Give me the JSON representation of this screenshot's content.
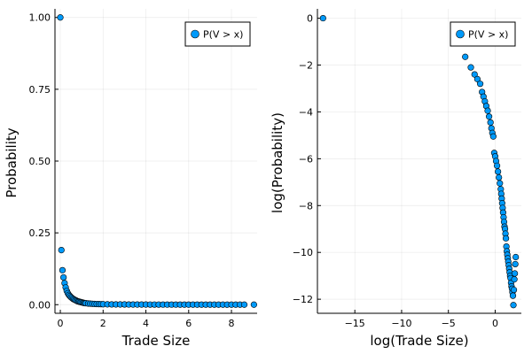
{
  "chart_data": [
    {
      "type": "scatter",
      "xlabel": "Trade Size",
      "ylabel": "Probability",
      "xlim": [
        -0.25,
        9.2
      ],
      "ylim": [
        -0.03,
        1.03
      ],
      "xticks": [
        0,
        2,
        4,
        6,
        8
      ],
      "xtick_labels": [
        "0",
        "2",
        "4",
        "6",
        "8"
      ],
      "yticks": [
        0.0,
        0.25,
        0.5,
        0.75,
        1.0
      ],
      "ytick_labels": [
        "0.00",
        "0.25",
        "0.50",
        "0.75",
        "1.00"
      ],
      "grid": true,
      "legend_position": "top-right",
      "series": [
        {
          "name": "P(V > x)",
          "color": "#009AFA",
          "x": [
            0.0,
            0.05,
            0.1,
            0.15,
            0.2,
            0.25,
            0.3,
            0.35,
            0.4,
            0.45,
            0.5,
            0.55,
            0.6,
            0.65,
            0.7,
            0.75,
            0.8,
            0.85,
            0.9,
            0.95,
            1.0,
            1.05,
            1.1,
            1.15,
            1.2,
            1.3,
            1.4,
            1.5,
            1.6,
            1.7,
            1.8,
            1.9,
            2.0,
            2.2,
            2.4,
            2.6,
            2.8,
            3.0,
            3.2,
            3.4,
            3.6,
            3.8,
            4.0,
            4.2,
            4.4,
            4.6,
            4.8,
            5.0,
            5.2,
            5.4,
            5.6,
            5.8,
            6.0,
            6.2,
            6.4,
            6.6,
            6.8,
            7.0,
            7.2,
            7.4,
            7.6,
            7.8,
            8.0,
            8.2,
            8.4,
            8.6,
            9.05
          ],
          "y": [
            1.0,
            0.19,
            0.12,
            0.095,
            0.075,
            0.06,
            0.048,
            0.04,
            0.034,
            0.03,
            0.026,
            0.023,
            0.02,
            0.018,
            0.016,
            0.014,
            0.012,
            0.011,
            0.01,
            0.009,
            0.008,
            0.007,
            0.006,
            0.0055,
            0.005,
            0.004,
            0.0035,
            0.003,
            0.0025,
            0.0022,
            0.002,
            0.0018,
            0.0015,
            0.0012,
            0.001,
            0.0009,
            0.0008,
            0.0007,
            0.0006,
            0.0005,
            0.0005,
            0.0004,
            0.0004,
            0.0003,
            0.0003,
            0.0003,
            0.0002,
            0.0002,
            0.0002,
            0.0002,
            0.0001,
            0.0001,
            0.0001,
            0.0001,
            0.0001,
            0.0001,
            0.0001,
            0.0001,
            0.0,
            0.0,
            0.0,
            0.0,
            0.0,
            0.0,
            0.0,
            0.0,
            0.0
          ]
        }
      ]
    },
    {
      "type": "scatter",
      "xlabel": "log(Trade Size)",
      "ylabel": "log(Probability)",
      "xlim": [
        -19.0,
        2.8
      ],
      "ylim": [
        -12.6,
        0.4
      ],
      "xticks": [
        -15,
        -10,
        -5,
        0
      ],
      "xtick_labels": [
        "−15",
        "−10",
        "−5",
        "0"
      ],
      "yticks": [
        -12,
        -10,
        -8,
        -6,
        -4,
        -2,
        0
      ],
      "ytick_labels": [
        "−12",
        "−10",
        "−8",
        "−6",
        "−4",
        "−2",
        "0"
      ],
      "grid": true,
      "legend_position": "top-right",
      "series": [
        {
          "name": "P(V > x)",
          "color": "#009AFA",
          "x": [
            -18.4,
            -3.2,
            -2.6,
            -2.2,
            -1.9,
            -1.6,
            -1.4,
            -1.25,
            -1.1,
            -0.95,
            -0.8,
            -0.65,
            -0.5,
            -0.4,
            -0.3,
            -0.2,
            -0.1,
            0.0,
            0.1,
            0.2,
            0.3,
            0.4,
            0.5,
            0.6,
            0.65,
            0.7,
            0.75,
            0.8,
            0.85,
            0.9,
            0.95,
            1.0,
            1.05,
            1.1,
            1.15,
            1.2,
            1.25,
            1.3,
            1.35,
            1.4,
            1.45,
            1.5,
            1.55,
            1.6,
            1.65,
            1.7,
            1.75,
            1.8,
            1.85,
            1.9,
            1.95,
            2.0,
            2.05,
            2.1,
            2.15,
            2.2
          ],
          "y": [
            0.0,
            -1.65,
            -2.1,
            -2.4,
            -2.6,
            -2.8,
            -3.15,
            -3.35,
            -3.55,
            -3.75,
            -3.95,
            -4.2,
            -4.45,
            -4.7,
            -4.9,
            -5.05,
            -5.75,
            -5.9,
            -6.1,
            -6.3,
            -6.55,
            -6.8,
            -7.05,
            -7.3,
            -7.5,
            -7.7,
            -7.9,
            -8.1,
            -8.3,
            -8.5,
            -8.7,
            -8.9,
            -9.0,
            -9.2,
            -9.4,
            -9.75,
            -9.95,
            -10.1,
            -10.25,
            -10.4,
            -10.55,
            -10.7,
            -10.85,
            -11.0,
            -11.1,
            -11.3,
            -11.45,
            -11.55,
            -11.7,
            -11.85,
            -12.25,
            -11.6,
            -11.15,
            -10.9,
            -10.5,
            -10.2
          ]
        }
      ]
    }
  ]
}
